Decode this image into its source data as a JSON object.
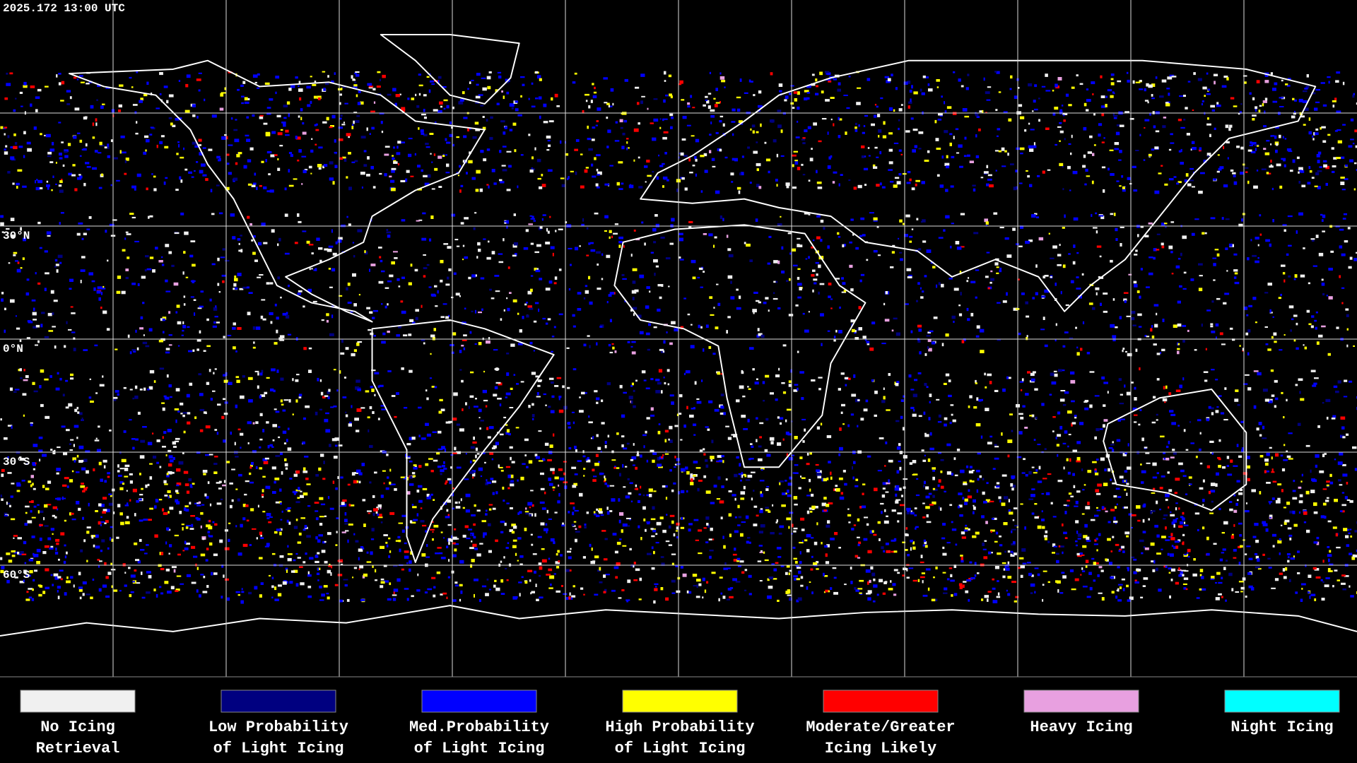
{
  "header": {
    "timestamp": "2025.172 13:00 UTC"
  },
  "map": {
    "latitude_labels": [
      "30°N",
      "0°N",
      "30°S",
      "60°S"
    ]
  },
  "legend": {
    "items": [
      {
        "label_lines": [
          "No Icing",
          "Retrieval"
        ],
        "color": "#f0f0f0"
      },
      {
        "label_lines": [
          "Low Probability",
          "of Light Icing"
        ],
        "color": "#000080"
      },
      {
        "label_lines": [
          "Med.Probability",
          "of Light Icing"
        ],
        "color": "#0000ff"
      },
      {
        "label_lines": [
          "High Probability",
          "of Light Icing"
        ],
        "color": "#ffff00"
      },
      {
        "label_lines": [
          "Moderate/Greater",
          "Icing Likely"
        ],
        "color": "#ff0000"
      },
      {
        "label_lines": [
          "Heavy Icing"
        ],
        "color": "#e8a0e0"
      },
      {
        "label_lines": [
          "Night Icing"
        ],
        "color": "#00ffff"
      }
    ]
  }
}
